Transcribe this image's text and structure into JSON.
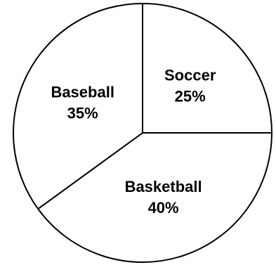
{
  "chart_data": {
    "type": "pie",
    "title": "",
    "slices": [
      {
        "label": "Soccer",
        "value": 25,
        "value_label": "25%"
      },
      {
        "label": "Basketball",
        "value": 40,
        "value_label": "40%"
      },
      {
        "label": "Baseball",
        "value": 35,
        "value_label": "35%"
      }
    ],
    "start": "12 o'clock",
    "direction": "clockwise",
    "colors": {
      "fill": "#ffffff",
      "stroke": "#000000",
      "text": "#000000"
    },
    "legend": "none"
  }
}
